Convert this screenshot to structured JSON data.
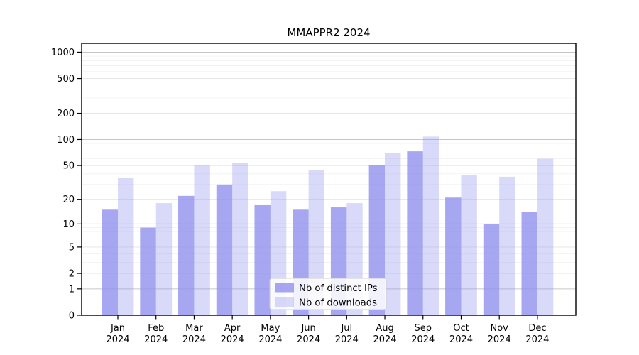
{
  "title": "MMAPPR2 2024",
  "chart_data": {
    "type": "bar",
    "title": "MMAPPR2 2024",
    "categories": [
      "Jan 2024",
      "Feb 2024",
      "Mar 2024",
      "Apr 2024",
      "May 2024",
      "Jun 2024",
      "Jul 2024",
      "Aug 2024",
      "Sep 2024",
      "Oct 2024",
      "Nov 2024",
      "Dec 2024"
    ],
    "series": [
      {
        "name": "Nb of distinct IPs",
        "color": "#9090ed",
        "opacity": 0.8,
        "values": [
          15,
          9,
          22,
          30,
          17,
          15,
          16,
          51,
          73,
          21,
          10,
          14
        ]
      },
      {
        "name": "Nb of downloads",
        "color": "#9090ed",
        "opacity": 0.34,
        "values": [
          36,
          18,
          50,
          54,
          25,
          44,
          18,
          70,
          108,
          39,
          37,
          60
        ]
      }
    ],
    "xlabel": "",
    "ylabel": "",
    "y_ticks": [
      0,
      1,
      2,
      5,
      10,
      20,
      50,
      100,
      200,
      500,
      1000
    ],
    "y_scale": "log1p",
    "ylim": [
      0,
      1300
    ],
    "grid": "both",
    "legend_position": "lower-center",
    "x_tick_year_line": "2024"
  },
  "colors": {
    "bar_base": "#9090ed",
    "grid_major": "#c6c6c6",
    "grid_mid": "#e3e3e3",
    "grid_minor": "#f1f1f1",
    "axis": "#000000",
    "legend_border": "#cccccc",
    "legend_bg": "#ffffff"
  }
}
